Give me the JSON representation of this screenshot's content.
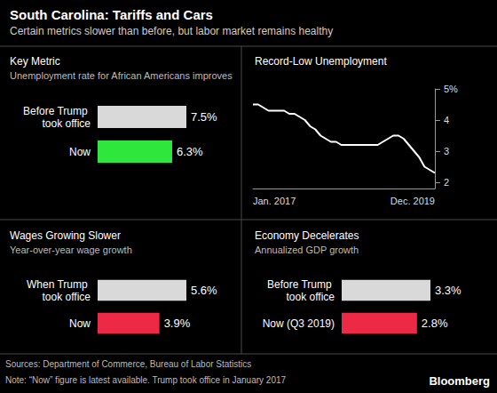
{
  "title": "South Carolina: Tariffs and Cars",
  "subtitle": "Certain metrics slower than before, but labor market remains healthy",
  "chart_data": [
    {
      "type": "bar",
      "orientation": "horizontal",
      "title": "Key Metric",
      "subtitle": "Unemployment rate for African Americans improves",
      "categories": [
        "Before Trump took office",
        "Now"
      ],
      "values": [
        7.5,
        6.3
      ],
      "value_labels": [
        "7.5%",
        "6.3%"
      ],
      "colors": [
        "#d9d9d9",
        "#2ee63c"
      ],
      "xlim": [
        0,
        7.5
      ],
      "data_labels": true,
      "tick_labels": "y",
      "grid": false
    },
    {
      "type": "line",
      "title": "Record-Low Unemployment",
      "categories": [
        "Jan. 2017",
        null,
        null,
        null,
        null,
        null,
        null,
        null,
        null,
        null,
        null,
        null,
        null,
        null,
        null,
        null,
        null,
        null,
        null,
        null,
        null,
        null,
        null,
        null,
        null,
        null,
        null,
        null,
        null,
        null,
        null,
        null,
        null,
        null,
        null,
        "Dec. 2019"
      ],
      "values": [
        4.5,
        4.5,
        4.4,
        4.3,
        4.3,
        4.3,
        4.3,
        4.2,
        4.2,
        4.1,
        4.0,
        3.8,
        3.7,
        3.5,
        3.4,
        3.3,
        3.3,
        3.2,
        3.2,
        3.2,
        3.2,
        3.2,
        3.2,
        3.2,
        3.2,
        3.3,
        3.4,
        3.5,
        3.5,
        3.4,
        3.2,
        3.0,
        2.8,
        2.5,
        2.4,
        2.3
      ],
      "color": "#ffffff",
      "line_style": "solid",
      "ylim": [
        1.8,
        5
      ],
      "yticks": [
        2,
        3,
        4,
        {
          "value": 5,
          "label": "5%"
        }
      ],
      "grid": false
    },
    {
      "type": "bar",
      "orientation": "horizontal",
      "title": "Wages Growing Slower",
      "subtitle": "Year-over-year wage growth",
      "categories": [
        "When Trump took office",
        "Now"
      ],
      "values": [
        5.6,
        3.9
      ],
      "value_labels": [
        "5.6%",
        "3.9%"
      ],
      "colors": [
        "#d9d9d9",
        "#ec2a46"
      ],
      "xlim": [
        0,
        5.6
      ],
      "data_labels": true,
      "tick_labels": "y",
      "grid": false
    },
    {
      "type": "bar",
      "orientation": "horizontal",
      "title": "Economy Decelerates",
      "subtitle": "Annualized GDP growth",
      "categories": [
        "Before Trump took office",
        "Now (Q3 2019)"
      ],
      "values": [
        3.3,
        2.8
      ],
      "value_labels": [
        "3.3%",
        "2.8%"
      ],
      "colors": [
        "#d9d9d9",
        "#ec2a46"
      ],
      "xlim": [
        0,
        3.3
      ],
      "data_labels": true,
      "tick_labels": "y",
      "grid": false
    }
  ],
  "footer": {
    "sources": "Sources: Department of Commerce, Bureau of Labor Statistics",
    "note": "Note: “Now” figure is latest available. Trump took office in January 2017",
    "brand": "Bloomberg"
  }
}
